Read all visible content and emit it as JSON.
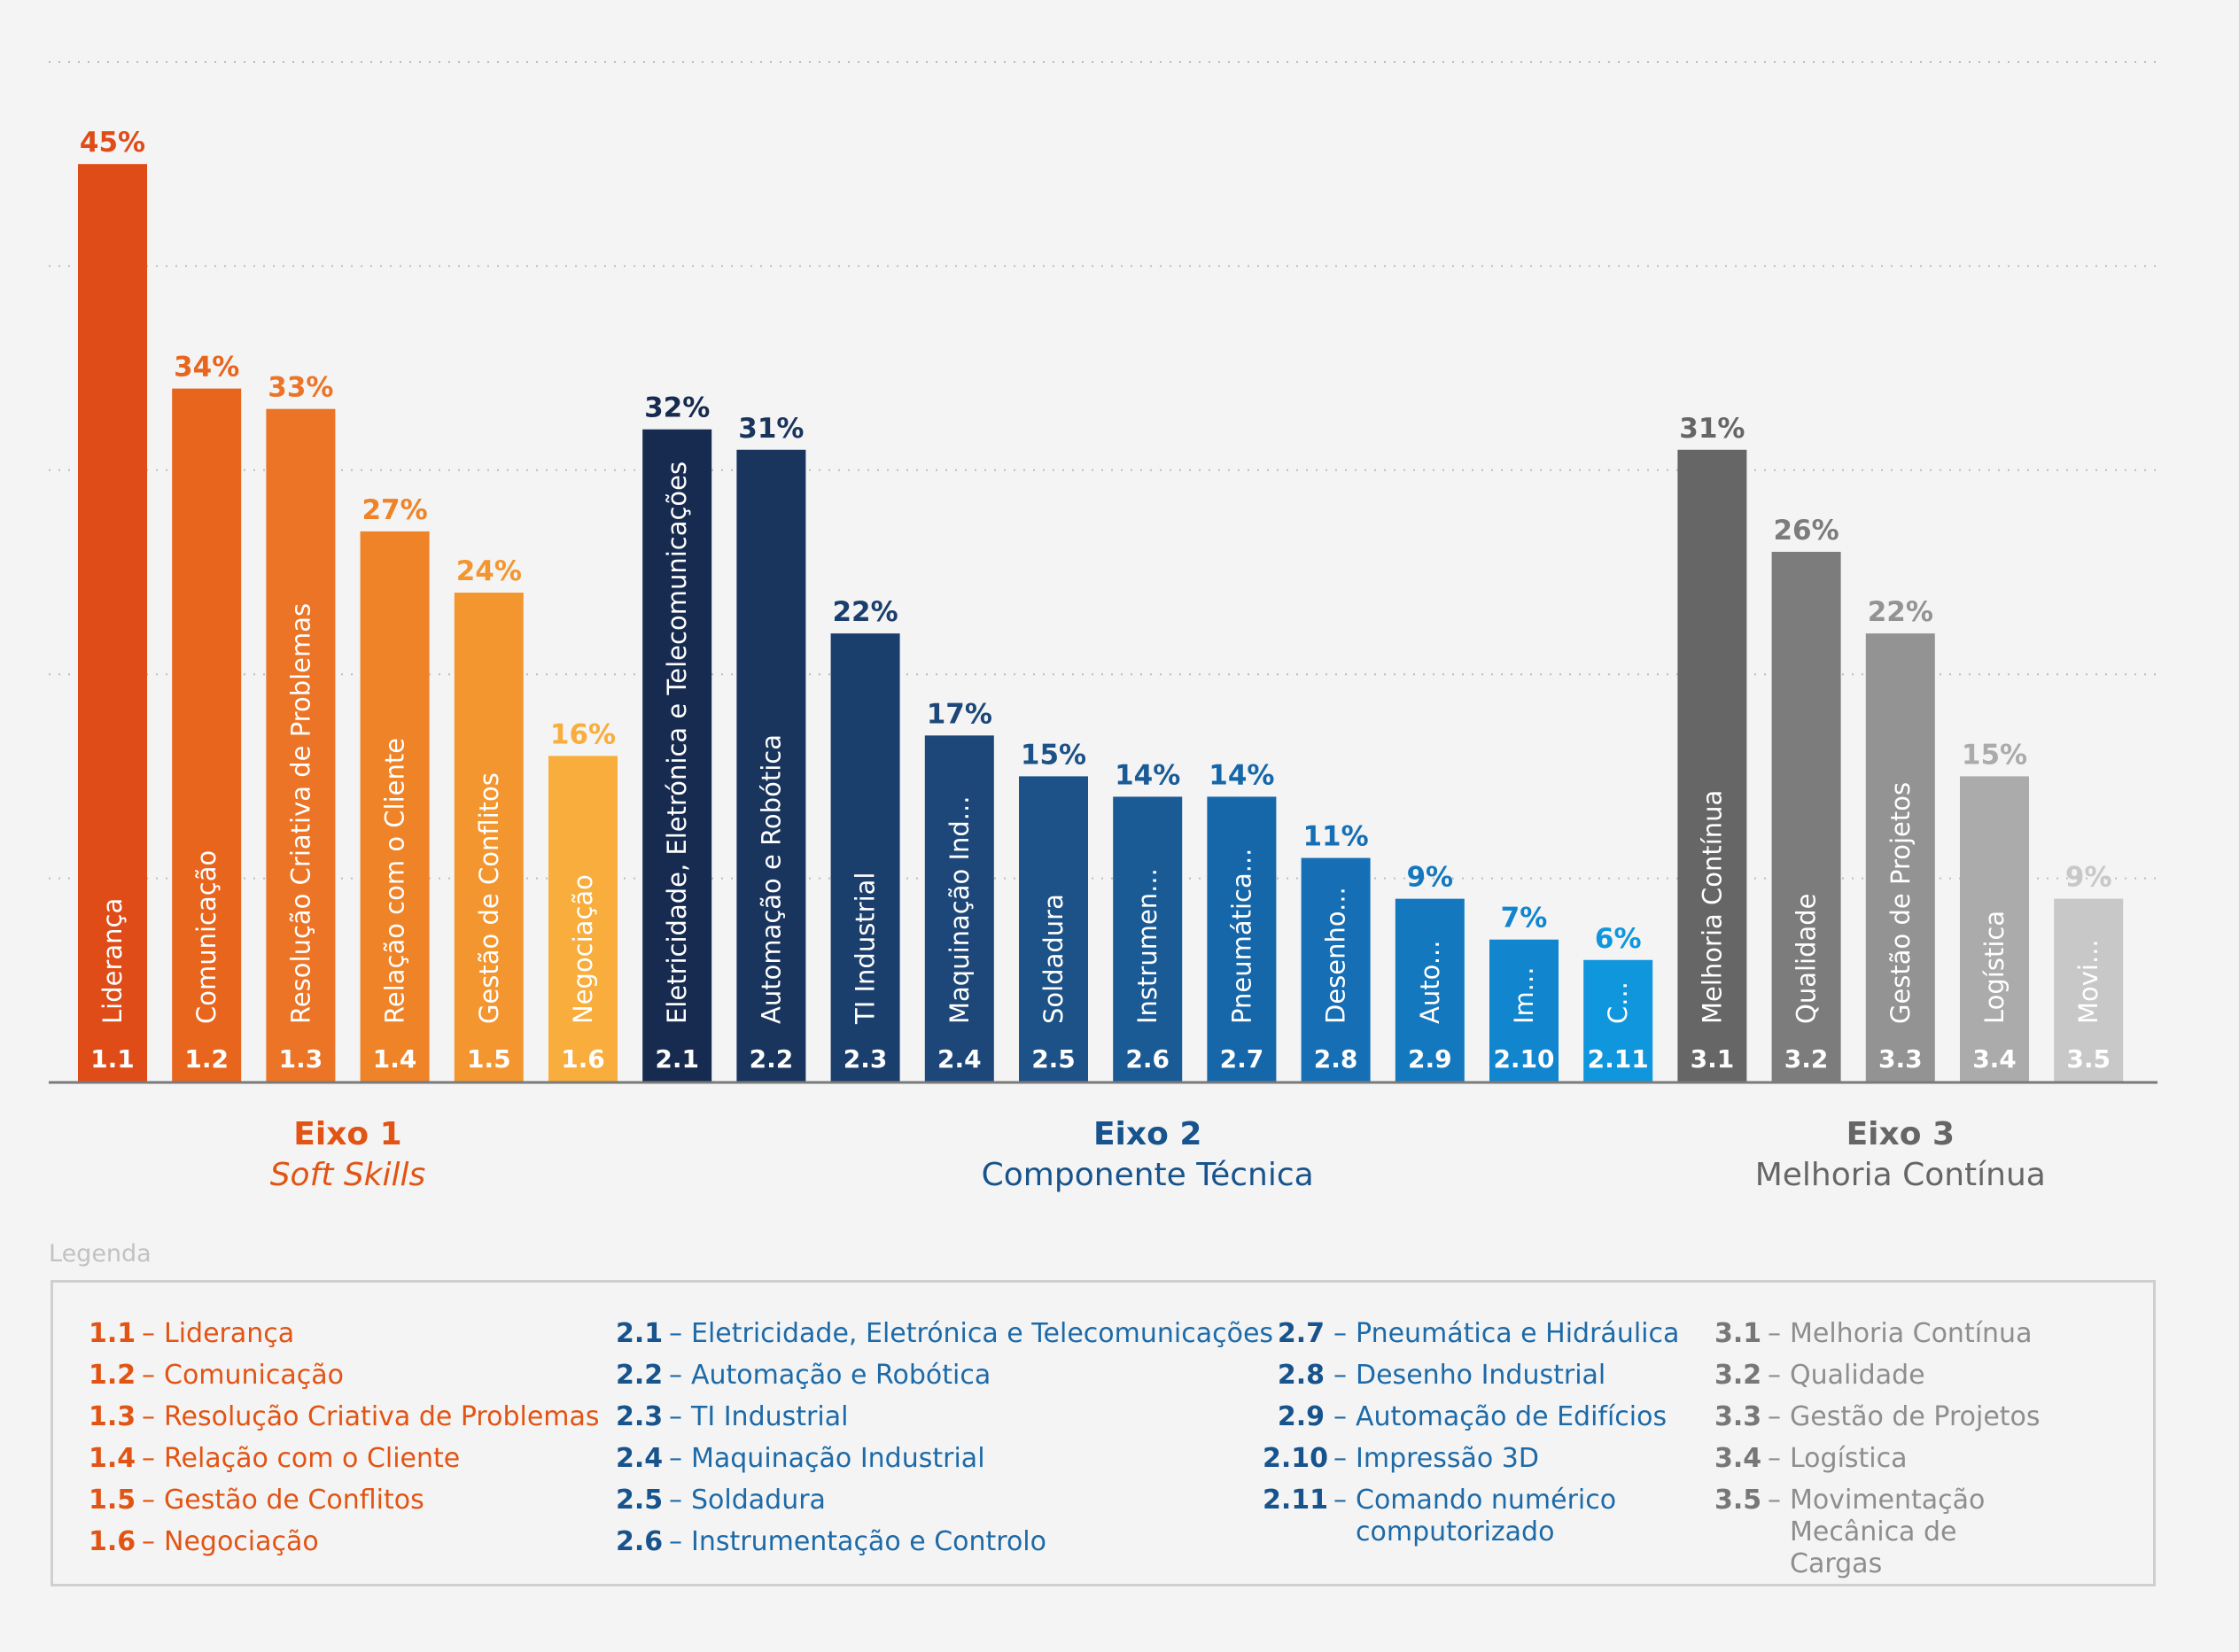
{
  "chart_data": {
    "type": "bar",
    "ylim": [
      0,
      50
    ],
    "gridlines": [
      10,
      20,
      30,
      40,
      50
    ],
    "groups": [
      {
        "title": "Eixo 1",
        "subtitle": "Soft Skills",
        "color": "#e25414",
        "subtitle_style": "italic"
      },
      {
        "title": "Eixo 2",
        "subtitle": "Componente Técnica",
        "color": "#17538c",
        "subtitle_style": "normal"
      },
      {
        "title": "Eixo 3",
        "subtitle": "Melhoria Contínua",
        "color": "#666666",
        "subtitle_style": "normal"
      }
    ],
    "bars": [
      {
        "code": "1.1",
        "label": "Liderança",
        "value": 45,
        "value_label": "45%",
        "color": "#e04c17",
        "label_color": "#e04c17",
        "group": 0
      },
      {
        "code": "1.2",
        "label": "Comunicação",
        "value": 34,
        "value_label": "34%",
        "color": "#e8651e",
        "label_color": "#e8651e",
        "group": 0
      },
      {
        "code": "1.3",
        "label": "Resolução Criativa de Problemas",
        "value": 33,
        "value_label": "33%",
        "color": "#ec7426",
        "label_color": "#ec7426",
        "group": 0
      },
      {
        "code": "1.4",
        "label": "Relação com o Cliente",
        "value": 27,
        "value_label": "27%",
        "color": "#ef8328",
        "label_color": "#ef8328",
        "group": 0
      },
      {
        "code": "1.5",
        "label": "Gestão de Conflitos",
        "value": 24,
        "value_label": "24%",
        "color": "#f3962f",
        "label_color": "#f3962f",
        "group": 0
      },
      {
        "code": "1.6",
        "label": "Negociação",
        "value": 16,
        "value_label": "16%",
        "color": "#f8ad3c",
        "label_color": "#f8ad3c",
        "group": 0
      },
      {
        "code": "2.1",
        "label": "Eletricidade, Eletrónica e Telecomunicações",
        "value": 32,
        "value_label": "32%",
        "color": "#172b50",
        "label_color": "#172b50",
        "group": 1
      },
      {
        "code": "2.2",
        "label": "Automação e Robótica",
        "value": 31,
        "value_label": "31%",
        "color": "#19355e",
        "label_color": "#19355e",
        "group": 1
      },
      {
        "code": "2.3",
        "label": "TI Industrial",
        "value": 22,
        "value_label": "22%",
        "color": "#1b3f6d",
        "label_color": "#1b3f6d",
        "group": 1
      },
      {
        "code": "2.4",
        "label": "Maquinação Ind...",
        "value": 17,
        "value_label": "17%",
        "color": "#1c4778",
        "label_color": "#1c4778",
        "group": 1
      },
      {
        "code": "2.5",
        "label": "Soldadura",
        "value": 15,
        "value_label": "15%",
        "color": "#1c5287",
        "label_color": "#1c5287",
        "group": 1
      },
      {
        "code": "2.6",
        "label": "Instrumen...",
        "value": 14,
        "value_label": "14%",
        "color": "#1a5b96",
        "label_color": "#1a5b96",
        "group": 1
      },
      {
        "code": "2.7",
        "label": "Pneumática...",
        "value": 14,
        "value_label": "14%",
        "color": "#1667aa",
        "label_color": "#1667aa",
        "group": 1
      },
      {
        "code": "2.8",
        "label": "Desenho...",
        "value": 11,
        "value_label": "11%",
        "color": "#166fb5",
        "label_color": "#166fb5",
        "group": 1
      },
      {
        "code": "2.9",
        "label": "Auto...",
        "value": 9,
        "value_label": "9%",
        "color": "#1478bf",
        "label_color": "#1478bf",
        "group": 1
      },
      {
        "code": "2.10",
        "label": "Im...",
        "value": 7,
        "value_label": "7%",
        "color": "#1285cf",
        "label_color": "#1285cf",
        "group": 1
      },
      {
        "code": "2.11",
        "label": "C...",
        "value": 6,
        "value_label": "6%",
        "color": "#1096dd",
        "label_color": "#1096dd",
        "group": 1
      },
      {
        "code": "3.1",
        "label": "Melhoria Contínua",
        "value": 31,
        "value_label": "31%",
        "color": "#666666",
        "label_color": "#666666",
        "group": 2
      },
      {
        "code": "3.2",
        "label": "Qualidade",
        "value": 26,
        "value_label": "26%",
        "color": "#7c7c7c",
        "label_color": "#7c7c7c",
        "group": 2
      },
      {
        "code": "3.3",
        "label": "Gestão de Projetos",
        "value": 22,
        "value_label": "22%",
        "color": "#939393",
        "label_color": "#939393",
        "group": 2
      },
      {
        "code": "3.4",
        "label": "Logística",
        "value": 15,
        "value_label": "15%",
        "color": "#ababab",
        "label_color": "#ababab",
        "group": 2
      },
      {
        "code": "3.5",
        "label": "Movi...",
        "value": 9,
        "value_label": "9%",
        "color": "#c8c8c8",
        "label_color": "#c8c8c8",
        "group": 2
      }
    ]
  },
  "legend": {
    "caption": "Legenda",
    "columns": [
      {
        "code_color": "#e25414",
        "text_color": "#e25414",
        "items": [
          {
            "code": "1.1",
            "text": "Liderança"
          },
          {
            "code": "1.2",
            "text": "Comunicação"
          },
          {
            "code": "1.3",
            "text": "Resolução Criativa de Problemas"
          },
          {
            "code": "1.4",
            "text": "Relação com o Cliente"
          },
          {
            "code": "1.5",
            "text": "Gestão de Conflitos"
          },
          {
            "code": "1.6",
            "text": "Negociação"
          }
        ]
      },
      {
        "code_color": "#17538c",
        "text_color": "#1d6aa8",
        "items": [
          {
            "code": "2.1",
            "text": "Eletricidade, Eletrónica e Telecomunicações"
          },
          {
            "code": "2.2",
            "text": "Automação e Robótica"
          },
          {
            "code": "2.3",
            "text": "TI Industrial"
          },
          {
            "code": "2.4",
            "text": "Maquinação Industrial"
          },
          {
            "code": "2.5",
            "text": "Soldadura"
          },
          {
            "code": "2.6",
            "text": "Instrumentação e Controlo"
          }
        ]
      },
      {
        "code_color": "#17538c",
        "text_color": "#1d6aa8",
        "items": [
          {
            "code": "2.7",
            "text": "Pneumática e Hidráulica"
          },
          {
            "code": "2.8",
            "text": "Desenho Industrial"
          },
          {
            "code": "2.9",
            "text": "Automação de Edifícios"
          },
          {
            "code": "2.10",
            "text": "Impressão 3D"
          },
          {
            "code": "2.11",
            "text": "Comando numérico computorizado"
          }
        ]
      },
      {
        "code_color": "#777777",
        "text_color": "#8e8e8e",
        "items": [
          {
            "code": "3.1",
            "text": "Melhoria Contínua"
          },
          {
            "code": "3.2",
            "text": "Qualidade"
          },
          {
            "code": "3.3",
            "text": "Gestão de Projetos"
          },
          {
            "code": "3.4",
            "text": "Logística"
          },
          {
            "code": "3.5",
            "text": "Movimentação Mecânica de Cargas"
          }
        ]
      }
    ]
  }
}
